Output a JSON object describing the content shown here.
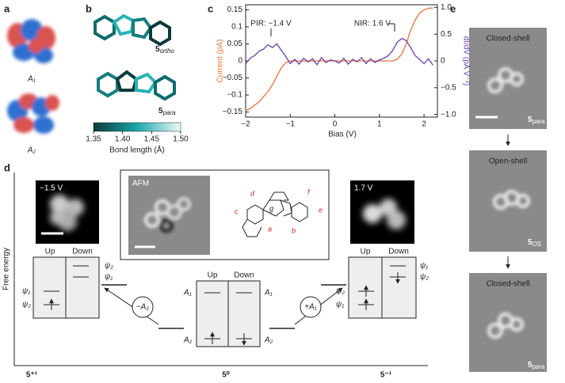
{
  "panel_labels": [
    "a",
    "b",
    "c",
    "d",
    "e"
  ],
  "a": {
    "orbitals": [
      "A₁",
      "A₂"
    ]
  },
  "b": {
    "molecules": [
      {
        "number": "5",
        "subscript": "ortho"
      },
      {
        "number": "5",
        "subscript": "para"
      }
    ],
    "colorbar": {
      "label": "Bond length (Å)",
      "lim": [
        1.35,
        1.5
      ],
      "colors": [
        "#0b3b3b",
        "#1aa8a8",
        "#eefafa"
      ],
      "ticks": [
        1.35,
        {
          "value": 1.4,
          "label": "1.40"
        },
        1.45,
        {
          "value": 1.5,
          "label": "1.50"
        }
      ]
    }
  },
  "chart_data": {
    "type": "line",
    "xlabel": "Bias (V)",
    "ylabel": "Current (pA)",
    "y2label": "dI/dV (pA V⁻¹)",
    "annotations": [
      "PIR: −1.4 V",
      "NIR: 1.6 V"
    ],
    "x": [
      -2.0,
      -1.9,
      -1.8,
      -1.7,
      -1.6,
      -1.5,
      -1.4,
      -1.3,
      -1.2,
      -1.1,
      -1.0,
      -0.9,
      -0.8,
      -0.7,
      -0.6,
      -0.5,
      -0.4,
      -0.3,
      -0.2,
      -0.1,
      0.0,
      0.1,
      0.2,
      0.3,
      0.4,
      0.5,
      0.6,
      0.7,
      0.8,
      0.9,
      1.0,
      1.1,
      1.2,
      1.3,
      1.4,
      1.5,
      1.6,
      1.7,
      1.8,
      1.9,
      2.0,
      2.1,
      2.2
    ],
    "series": [
      {
        "color": "#e8743b",
        "values": [
          -0.145,
          -0.14,
          -0.13,
          -0.12,
          -0.105,
          -0.09,
          -0.07,
          -0.045,
          -0.02,
          -0.005,
          0,
          0,
          0,
          0,
          0,
          0,
          0,
          0,
          0,
          0,
          0,
          0,
          0,
          0,
          0,
          0,
          0,
          0,
          0,
          0,
          0,
          0,
          0,
          0,
          0.005,
          0.02,
          0.05,
          0.09,
          0.12,
          0.14,
          0.15,
          0.155,
          0.155
        ]
      },
      {
        "color": "#6a3fb0",
        "axis": "y2",
        "values": [
          -0.05,
          0.05,
          0.1,
          0.18,
          0.22,
          0.3,
          0.25,
          0.32,
          0.2,
          0.08,
          -0.05,
          0.03,
          -0.06,
          0.05,
          -0.02,
          0.04,
          -0.07,
          0.06,
          -0.03,
          0.02,
          0.0,
          -0.04,
          0.05,
          -0.06,
          0.03,
          -0.02,
          0.06,
          -0.05,
          0.04,
          -0.03,
          0.02,
          0.05,
          0.1,
          0.2,
          0.35,
          0.42,
          0.38,
          0.25,
          0.1,
          0.03,
          -0.05,
          0.04,
          -0.08
        ]
      }
    ],
    "xlim": [
      -2,
      2.3
    ],
    "ylim": [
      -0.165,
      0.165
    ],
    "y2lim": [
      -1.05,
      1.05
    ],
    "xticks": [
      {
        "value": -2,
        "label": "−2"
      },
      {
        "value": -1,
        "label": "−1"
      },
      0,
      1,
      2
    ],
    "yticks": [
      0.15,
      0.1,
      0.05,
      0,
      {
        "value": -0.05,
        "label": "−0.05"
      },
      {
        "value": -0.1,
        "label": "−0.1"
      },
      {
        "value": -0.15,
        "label": "−0.15"
      }
    ],
    "y2ticks": [
      {
        "value": 1,
        "label": "1.0"
      },
      0.5,
      0,
      {
        "value": -0.5,
        "label": "−0.5"
      },
      {
        "value": -1,
        "label": "−1.0"
      }
    ]
  },
  "d": {
    "ylabel": "Free energy",
    "images": [
      "−1.5 V",
      "AFM",
      "1.7 V"
    ],
    "atom_labels": [
      "d",
      "c",
      "g",
      "a",
      "b",
      "f",
      "e"
    ],
    "spin_columns": [
      "Up",
      "Down"
    ],
    "left_box": {
      "right_levels": [
        "ψ₂",
        "ψ₁"
      ],
      "left_levels": [
        "ψ₁",
        "ψ₂"
      ]
    },
    "center_box": {
      "left_levels": [
        "A₁",
        "A₂"
      ],
      "right_levels": [
        "A₁",
        "A₂"
      ]
    },
    "right_box": {
      "left_levels": [
        "ψ₂",
        "ψ₁"
      ],
      "right_levels": [
        "ψ₁",
        "ψ₂"
      ]
    },
    "transitions": [
      "−A₂",
      "+A₁"
    ],
    "states": [
      "5⁺¹",
      "5⁰",
      "5⁻¹"
    ]
  },
  "e": {
    "panels": [
      {
        "title": "Closed-shell",
        "number": "5",
        "subscript": "para"
      },
      {
        "title": "Open-shell",
        "number": "5",
        "subscript": "OS"
      },
      {
        "title": "Closed-shell",
        "number": "5",
        "subscript": "para"
      }
    ]
  }
}
